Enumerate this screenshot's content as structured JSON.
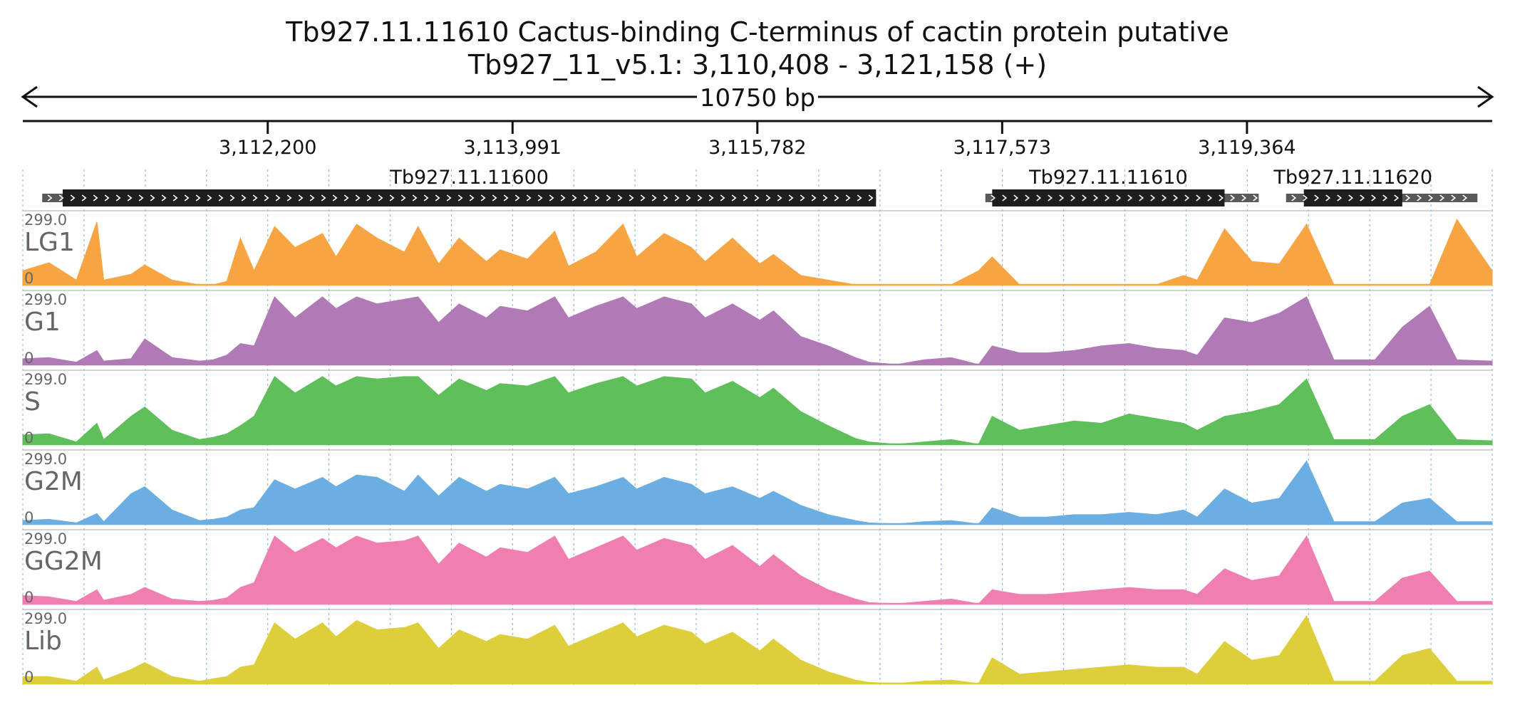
{
  "title_line1": "Tb927.11.11610  Cactus-binding C-terminus of cactin protein  putative",
  "title_line2": "Tb927_11_v5.1: 3,110,408 - 3,121,158 (+)",
  "span_label": "10750 bp",
  "colors": {
    "LG1": "#f7a443",
    "G1": "#b07ab6",
    "S": "#5fbf5a",
    "G2M": "#6aaee2",
    "GG2M": "#f07fb1",
    "Lib": "#dccf3a",
    "gene_fill": "#1e1e1e",
    "utr_fill": "#595959",
    "grid": "#7aa8d8"
  },
  "chart_data": {
    "type": "area",
    "title": "Tb927.11.11610  Cactus-binding C-terminus of cactin protein  putative",
    "subtitle": "Tb927_11_v5.1: 3,110,408 - 3,121,158 (+)",
    "region": {
      "chromosome": "Tb927_11_v5.1",
      "start": 3110408,
      "end": 3121158,
      "strand": "+",
      "length_bp": 10750
    },
    "x_ticks": [
      {
        "pos": 3112200,
        "label": "3,112,200"
      },
      {
        "pos": 3113991,
        "label": "3,113,991"
      },
      {
        "pos": 3115782,
        "label": "3,115,782"
      },
      {
        "pos": 3117573,
        "label": "3,117,573"
      },
      {
        "pos": 3119364,
        "label": "3,119,364"
      }
    ],
    "genes": [
      {
        "name": "Tb927.11.11600",
        "utr_start": 3110550,
        "cds_start": 3110700,
        "cds_end": 3116650,
        "utr_end": 3116650
      },
      {
        "name": "Tb927.11.11610",
        "utr_start": 3117450,
        "cds_start": 3117500,
        "cds_end": 3119200,
        "utr_end": 3119450
      },
      {
        "name": "Tb927.11.11620",
        "utr_start": 3119650,
        "cds_start": 3119780,
        "cds_end": 3120500,
        "utr_end": 3121050
      }
    ],
    "ylim": [
      0,
      299.0
    ],
    "ymax_label": "299.0",
    "ymin_label": "0",
    "x": [
      3110408,
      3110600,
      3110800,
      3110950,
      3111000,
      3111200,
      3111300,
      3111500,
      3111700,
      3111800,
      3111900,
      3112000,
      3112100,
      3112250,
      3112400,
      3112600,
      3112700,
      3112850,
      3113000,
      3113200,
      3113300,
      3113450,
      3113600,
      3113800,
      3113900,
      3114100,
      3114300,
      3114400,
      3114600,
      3114800,
      3114900,
      3115100,
      3115300,
      3115400,
      3115600,
      3115800,
      3115900,
      3116100,
      3116300,
      3116500,
      3116600,
      3116800,
      3117000,
      3117200,
      3117400,
      3117500,
      3117700,
      3117900,
      3118100,
      3118300,
      3118500,
      3118700,
      3118900,
      3119000,
      3119200,
      3119400,
      3119600,
      3119800,
      3120000,
      3120300,
      3120500,
      3120700,
      3120900,
      3121158
    ],
    "series": [
      {
        "name": "LG1",
        "values": [
          60,
          95,
          20,
          270,
          20,
          45,
          85,
          20,
          0,
          0,
          15,
          200,
          60,
          250,
          160,
          220,
          120,
          260,
          200,
          140,
          250,
          90,
          200,
          100,
          150,
          110,
          230,
          80,
          140,
          260,
          120,
          220,
          160,
          100,
          200,
          90,
          130,
          40,
          20,
          0,
          0,
          0,
          0,
          0,
          60,
          120,
          0,
          0,
          0,
          0,
          0,
          0,
          40,
          20,
          240,
          100,
          90,
          260,
          0,
          0,
          0,
          0,
          280,
          60
        ]
      },
      {
        "name": "G1",
        "values": [
          25,
          30,
          10,
          60,
          15,
          25,
          110,
          30,
          15,
          20,
          40,
          90,
          80,
          290,
          200,
          290,
          240,
          290,
          260,
          280,
          290,
          180,
          260,
          200,
          250,
          230,
          290,
          200,
          250,
          290,
          240,
          290,
          260,
          200,
          260,
          190,
          230,
          120,
          80,
          30,
          10,
          0,
          20,
          30,
          0,
          80,
          50,
          50,
          60,
          80,
          90,
          70,
          60,
          40,
          200,
          180,
          220,
          290,
          20,
          20,
          160,
          250,
          20,
          15
        ]
      },
      {
        "name": "S",
        "values": [
          40,
          45,
          10,
          90,
          20,
          120,
          160,
          60,
          20,
          30,
          45,
          80,
          120,
          290,
          220,
          290,
          250,
          290,
          280,
          290,
          290,
          210,
          280,
          230,
          260,
          250,
          290,
          220,
          260,
          290,
          250,
          290,
          280,
          220,
          270,
          200,
          240,
          140,
          80,
          25,
          10,
          0,
          10,
          20,
          0,
          120,
          60,
          80,
          100,
          90,
          130,
          110,
          90,
          60,
          120,
          140,
          170,
          280,
          20,
          20,
          120,
          170,
          20,
          15
        ]
      },
      {
        "name": "G2M",
        "values": [
          15,
          20,
          5,
          45,
          10,
          130,
          160,
          60,
          15,
          20,
          30,
          60,
          70,
          190,
          150,
          200,
          160,
          210,
          200,
          140,
          210,
          120,
          200,
          140,
          170,
          150,
          200,
          130,
          160,
          200,
          150,
          200,
          170,
          130,
          160,
          110,
          140,
          80,
          40,
          15,
          5,
          0,
          10,
          15,
          0,
          70,
          30,
          30,
          40,
          40,
          50,
          40,
          60,
          30,
          150,
          90,
          110,
          270,
          10,
          10,
          90,
          110,
          10,
          10
        ]
      },
      {
        "name": "GG2M",
        "values": [
          35,
          30,
          10,
          60,
          15,
          40,
          70,
          20,
          10,
          15,
          25,
          70,
          90,
          290,
          220,
          280,
          240,
          290,
          260,
          270,
          290,
          170,
          260,
          200,
          240,
          220,
          290,
          190,
          240,
          290,
          230,
          280,
          250,
          190,
          250,
          160,
          210,
          120,
          60,
          20,
          5,
          0,
          10,
          20,
          0,
          60,
          40,
          40,
          50,
          60,
          70,
          60,
          60,
          40,
          150,
          100,
          120,
          290,
          10,
          10,
          110,
          140,
          10,
          10
        ]
      },
      {
        "name": "Lib",
        "values": [
          30,
          30,
          10,
          70,
          15,
          60,
          90,
          30,
          10,
          20,
          30,
          70,
          80,
          260,
          190,
          260,
          200,
          270,
          230,
          240,
          260,
          150,
          230,
          180,
          210,
          190,
          250,
          160,
          210,
          260,
          200,
          250,
          220,
          170,
          220,
          140,
          190,
          100,
          50,
          15,
          5,
          0,
          10,
          15,
          0,
          110,
          40,
          50,
          60,
          70,
          80,
          70,
          70,
          40,
          180,
          100,
          120,
          290,
          10,
          10,
          120,
          150,
          10,
          10
        ]
      }
    ]
  }
}
